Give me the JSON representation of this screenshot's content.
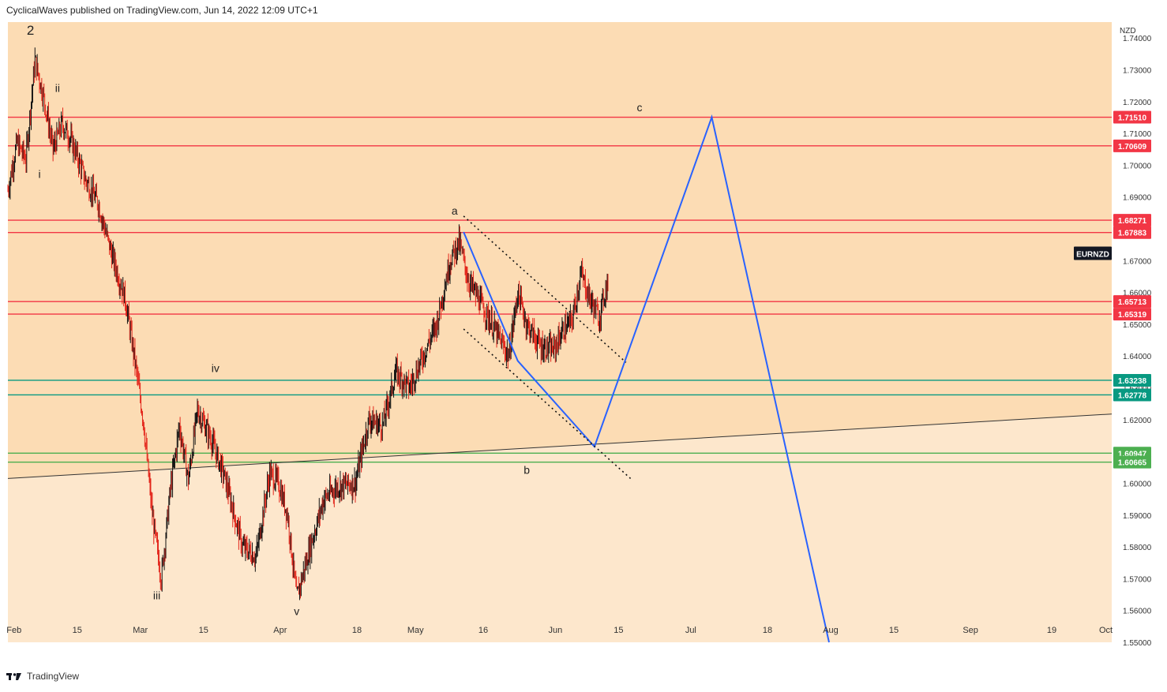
{
  "header": {
    "text": "CyclicalWaves published on TradingView.com, Jun 14, 2022 12:09 UTC+1"
  },
  "footer": {
    "logo_icon": "tradingview-logo-icon",
    "brand": "TradingView"
  },
  "chart_data": {
    "type": "candlestick",
    "symbol": "EURNZD",
    "currency": "NZD",
    "ylim": [
      1.55,
      1.745
    ],
    "y_ticks": [
      "1.74000",
      "1.73000",
      "1.72000",
      "1.71000",
      "1.70000",
      "1.69000",
      "1.68000",
      "1.67000",
      "1.66000",
      "1.65000",
      "1.64000",
      "1.63000",
      "1.62000",
      "1.61000",
      "1.60000",
      "1.59000",
      "1.58000",
      "1.57000",
      "1.56000",
      "1.55000"
    ],
    "x_ticks": [
      "Feb",
      "15",
      "Mar",
      "15",
      "Apr",
      "18",
      "May",
      "16",
      "Jun",
      "15",
      "Jul",
      "18",
      "Aug",
      "15",
      "Sep",
      "19",
      "Oct"
    ],
    "x_tick_dates": [
      "2022-02-01",
      "2022-02-15",
      "2022-03-01",
      "2022-03-15",
      "2022-04-01",
      "2022-04-18",
      "2022-05-01",
      "2022-05-16",
      "2022-06-01",
      "2022-06-15",
      "2022-07-01",
      "2022-07-18",
      "2022-08-01",
      "2022-08-15",
      "2022-09-01",
      "2022-09-19",
      "2022-10-01"
    ],
    "horizontal_levels": [
      {
        "value": 1.7151,
        "label": "1.71510",
        "color": "#f23645"
      },
      {
        "value": 1.70609,
        "label": "1.70609",
        "color": "#f23645"
      },
      {
        "value": 1.68271,
        "label": "1.68271",
        "color": "#f23645"
      },
      {
        "value": 1.67883,
        "label": "1.67883",
        "color": "#f23645"
      },
      {
        "value": 1.65713,
        "label": "1.65713",
        "color": "#f23645"
      },
      {
        "value": 1.65319,
        "label": "1.65319",
        "color": "#f23645"
      },
      {
        "value": 1.63238,
        "label": "1.63238",
        "color": "#089981"
      },
      {
        "value": 1.62778,
        "label": "1.62778",
        "color": "#089981"
      },
      {
        "value": 1.60947,
        "label": "1.60947",
        "color": "#4caf50"
      },
      {
        "value": 1.60665,
        "label": "1.60665",
        "color": "#4caf50"
      }
    ],
    "symbol_price": 1.6722,
    "wave_labels": [
      {
        "text": "2",
        "date": "2022-02-05",
        "value": 1.741
      },
      {
        "text": "ii",
        "date": "2022-02-11",
        "value": 1.723
      },
      {
        "text": "i",
        "date": "2022-02-07",
        "value": 1.696
      },
      {
        "text": "iii",
        "date": "2022-03-05",
        "value": 1.5635
      },
      {
        "text": "iv",
        "date": "2022-03-18",
        "value": 1.635
      },
      {
        "text": "v",
        "date": "2022-04-05",
        "value": 1.5585
      },
      {
        "text": "a",
        "date": "2022-05-10",
        "value": 1.6845
      },
      {
        "text": "b",
        "date": "2022-05-26",
        "value": 1.603
      },
      {
        "text": "c",
        "date": "2022-06-20",
        "value": 1.717
      }
    ],
    "projection_path": [
      {
        "date": "2022-05-12",
        "value": 1.679
      },
      {
        "date": "2022-05-24",
        "value": 1.6385
      },
      {
        "date": "2022-06-10",
        "value": 1.6115
      },
      {
        "date": "2022-07-06",
        "value": 1.7151
      },
      {
        "date": "2022-08-01",
        "value": 1.55
      }
    ],
    "channel_upper": [
      {
        "date": "2022-05-12",
        "value": 1.684
      },
      {
        "date": "2022-06-17",
        "value": 1.638
      }
    ],
    "channel_lower": [
      {
        "date": "2022-05-12",
        "value": 1.6485
      },
      {
        "date": "2022-06-18",
        "value": 1.6015
      }
    ],
    "trendline": [
      {
        "date": "2022-01-31",
        "value": 1.6015
      },
      {
        "date": "2022-10-03",
        "value": 1.6218
      }
    ],
    "zones": [
      {
        "from": 1.745,
        "to": 1.6015,
        "color": "#fcdcb4"
      },
      {
        "from": 1.6015,
        "to": 1.55,
        "color": "#fce6cc"
      }
    ],
    "price_path": [
      {
        "date": "2022-01-31",
        "value": 1.692
      },
      {
        "date": "2022-02-02",
        "value": 1.707
      },
      {
        "date": "2022-02-04",
        "value": 1.702
      },
      {
        "date": "2022-02-06",
        "value": 1.733
      },
      {
        "date": "2022-02-08",
        "value": 1.721
      },
      {
        "date": "2022-02-10",
        "value": 1.705
      },
      {
        "date": "2022-02-12",
        "value": 1.713
      },
      {
        "date": "2022-02-14",
        "value": 1.708
      },
      {
        "date": "2022-02-17",
        "value": 1.696
      },
      {
        "date": "2022-02-20",
        "value": 1.688
      },
      {
        "date": "2022-02-23",
        "value": 1.672
      },
      {
        "date": "2022-02-26",
        "value": 1.658
      },
      {
        "date": "2022-02-28",
        "value": 1.64
      },
      {
        "date": "2022-03-02",
        "value": 1.62
      },
      {
        "date": "2022-03-04",
        "value": 1.59
      },
      {
        "date": "2022-03-06",
        "value": 1.57
      },
      {
        "date": "2022-03-08",
        "value": 1.598
      },
      {
        "date": "2022-03-10",
        "value": 1.618
      },
      {
        "date": "2022-03-12",
        "value": 1.601
      },
      {
        "date": "2022-03-14",
        "value": 1.623
      },
      {
        "date": "2022-03-17",
        "value": 1.614
      },
      {
        "date": "2022-03-20",
        "value": 1.602
      },
      {
        "date": "2022-03-24",
        "value": 1.58
      },
      {
        "date": "2022-03-27",
        "value": 1.577
      },
      {
        "date": "2022-03-30",
        "value": 1.603
      },
      {
        "date": "2022-04-01",
        "value": 1.6
      },
      {
        "date": "2022-04-03",
        "value": 1.59
      },
      {
        "date": "2022-04-05",
        "value": 1.564
      },
      {
        "date": "2022-04-08",
        "value": 1.58
      },
      {
        "date": "2022-04-11",
        "value": 1.595
      },
      {
        "date": "2022-04-14",
        "value": 1.599
      },
      {
        "date": "2022-04-18",
        "value": 1.6
      },
      {
        "date": "2022-04-21",
        "value": 1.62
      },
      {
        "date": "2022-04-24",
        "value": 1.618
      },
      {
        "date": "2022-04-27",
        "value": 1.635
      },
      {
        "date": "2022-04-30",
        "value": 1.63
      },
      {
        "date": "2022-05-03",
        "value": 1.64
      },
      {
        "date": "2022-05-06",
        "value": 1.65
      },
      {
        "date": "2022-05-09",
        "value": 1.67
      },
      {
        "date": "2022-05-11",
        "value": 1.676
      },
      {
        "date": "2022-05-13",
        "value": 1.664
      },
      {
        "date": "2022-05-16",
        "value": 1.656
      },
      {
        "date": "2022-05-19",
        "value": 1.648
      },
      {
        "date": "2022-05-22",
        "value": 1.64
      },
      {
        "date": "2022-05-24",
        "value": 1.66
      },
      {
        "date": "2022-05-26",
        "value": 1.65
      },
      {
        "date": "2022-05-29",
        "value": 1.643
      },
      {
        "date": "2022-06-01",
        "value": 1.642
      },
      {
        "date": "2022-06-03",
        "value": 1.648
      },
      {
        "date": "2022-06-05",
        "value": 1.651
      },
      {
        "date": "2022-06-07",
        "value": 1.666
      },
      {
        "date": "2022-06-09",
        "value": 1.658
      },
      {
        "date": "2022-06-11",
        "value": 1.652
      },
      {
        "date": "2022-06-13",
        "value": 1.664
      }
    ]
  }
}
